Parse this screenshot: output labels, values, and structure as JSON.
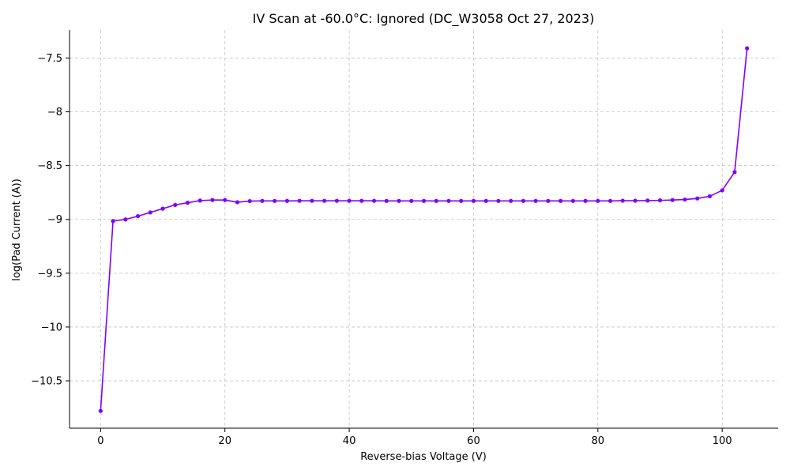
{
  "chart_data": {
    "type": "line",
    "title": "IV Scan at -60.0$^\\circ$C: Ignored (DC_W3058 Oct 27, 2023)",
    "title_display": "IV Scan at -60.0°C: Ignored (DC_W3058 Oct 27, 2023)",
    "xlabel": "Reverse-bias Voltage (V)",
    "ylabel": "log(Pad Current (A))",
    "xlim": [
      -5,
      109
    ],
    "ylim": [
      -10.94,
      -7.24
    ],
    "xticks": [
      0,
      20,
      40,
      60,
      80,
      100
    ],
    "yticks": [
      -10.5,
      -10.0,
      -9.5,
      -9.0,
      -8.5,
      -8.0,
      -7.5
    ],
    "grid": true,
    "series": [
      {
        "color": "#8000ff",
        "marker": "circle",
        "x": [
          0,
          2,
          4,
          6,
          8,
          10,
          12,
          14,
          16,
          18,
          20,
          22,
          24,
          26,
          28,
          30,
          32,
          34,
          36,
          38,
          40,
          42,
          44,
          46,
          48,
          50,
          52,
          54,
          56,
          58,
          60,
          62,
          64,
          66,
          68,
          70,
          72,
          74,
          76,
          78,
          80,
          82,
          84,
          86,
          88,
          90,
          92,
          94,
          96,
          98,
          100,
          102,
          104
        ],
        "y": [
          -10.78,
          -9.015,
          -9.0,
          -8.97,
          -8.935,
          -8.9,
          -8.865,
          -8.845,
          -8.825,
          -8.82,
          -8.82,
          -8.84,
          -8.83,
          -8.828,
          -8.828,
          -8.828,
          -8.827,
          -8.827,
          -8.827,
          -8.827,
          -8.827,
          -8.827,
          -8.827,
          -8.828,
          -8.828,
          -8.828,
          -8.828,
          -8.828,
          -8.828,
          -8.828,
          -8.828,
          -8.828,
          -8.828,
          -8.828,
          -8.828,
          -8.828,
          -8.828,
          -8.828,
          -8.828,
          -8.828,
          -8.828,
          -8.828,
          -8.826,
          -8.826,
          -8.825,
          -8.823,
          -8.82,
          -8.815,
          -8.805,
          -8.785,
          -8.73,
          -8.56,
          -7.41
        ]
      }
    ]
  }
}
